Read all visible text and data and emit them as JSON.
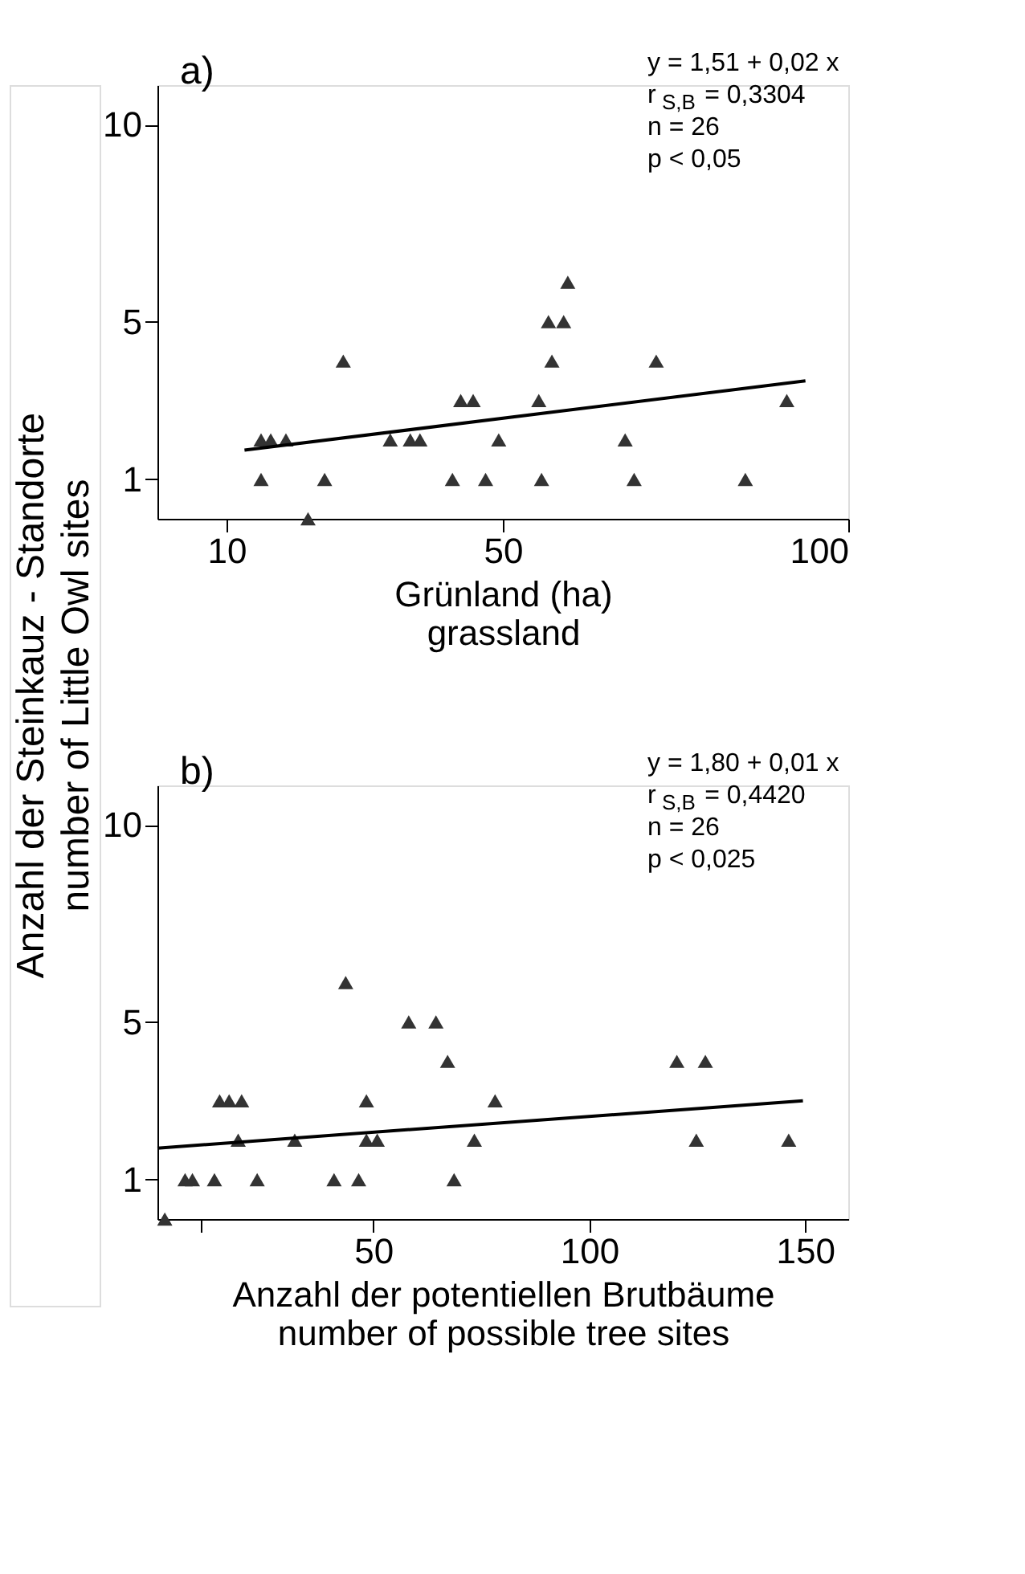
{
  "chart_data": [
    {
      "type": "scatter",
      "xlabel": "Grünland (ha)\ngrassland",
      "ylabel": "Anzahl der Steinkauz - Standorte\nnumber of Little Owl sites",
      "xlim": [
        0,
        100
      ],
      "xticks": [
        10,
        50,
        100
      ],
      "ylim": [
        0,
        11
      ],
      "yticks": [
        1,
        5,
        10
      ],
      "grid": false,
      "series": [
        {
          "color": "#333333",
          "marker": "triangle",
          "x": [
            15.0,
            16.4,
            18.6,
            15.0,
            21.8,
            24.2,
            26.9,
            33.7,
            36.6,
            38.0,
            42.7,
            43.9,
            45.7,
            47.5,
            49.4,
            55.2,
            55.6,
            56.6,
            57.1,
            58.8,
            59.4,
            67.7,
            69.0,
            72.2,
            85.1,
            91.1
          ],
          "values": [
            2,
            2,
            2,
            1,
            0,
            1,
            4,
            2,
            2,
            2,
            1,
            3,
            3,
            1,
            2,
            3,
            1,
            5,
            4,
            5,
            6,
            2,
            1,
            4,
            1,
            3
          ]
        },
        {
          "type": "line",
          "line_style": "solid",
          "color": "#000000",
          "x": [
            12.6,
            93.8
          ],
          "values": [
            1.74,
            3.5
          ]
        }
      ],
      "annotations": [
        "a)",
        "y = 1,51 + 0,02 x",
        "r$_{S,B}$ = 0,3304",
        "n = 26",
        "p < 0,05"
      ]
    },
    {
      "type": "scatter",
      "xlabel": "Anzahl der potentiellen Brutbäume\nnumber of possible tree sites",
      "xlim": [
        0,
        160
      ],
      "xticks": [
        {
          "value": 10,
          "label": null
        },
        50,
        100,
        150
      ],
      "ylim": [
        0,
        11
      ],
      "yticks": [
        1,
        5,
        10
      ],
      "grid": false,
      "series": [
        {
          "color": "#333333",
          "marker": "triangle",
          "x": [
            1.7,
            6.4,
            8.1,
            13.2,
            14.4,
            16.6,
            19.5,
            18.7,
            23.1,
            31.8,
            40.9,
            43.6,
            46.6,
            48.4,
            48.4,
            50.9,
            58.2,
            64.5,
            67.2,
            68.7,
            73.4,
            78.2,
            120.3,
            124.8,
            126.9,
            146.2
          ],
          "values": [
            0,
            1,
            1,
            1,
            3,
            3,
            3,
            2,
            1,
            2,
            1,
            6,
            1,
            3,
            2,
            2,
            5,
            5,
            4,
            1,
            2,
            3,
            4,
            2,
            4,
            2
          ]
        },
        {
          "type": "line",
          "line_style": "solid",
          "color": "#000000",
          "x": [
            0,
            149.5
          ],
          "values": [
            1.8,
            3.0
          ]
        }
      ],
      "annotations": [
        "b)",
        "y = 1,80 + 0,01 x",
        "r$_{S,B}$ = 0,4420",
        "n = 26",
        "p < 0,025"
      ]
    }
  ]
}
